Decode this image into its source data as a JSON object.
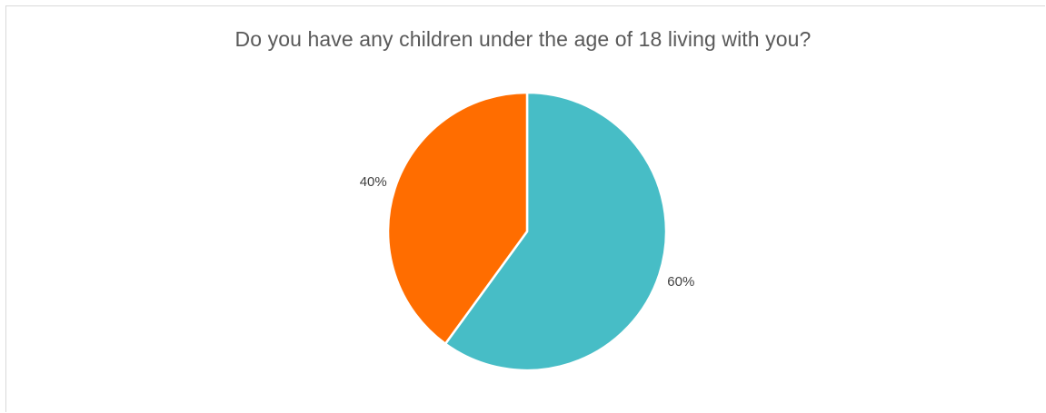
{
  "chart_data": {
    "type": "pie",
    "title": "Do you have any children under the age of 18 living with you?",
    "slices": [
      {
        "value": 60,
        "label": "60%",
        "color": "#47bdc6"
      },
      {
        "value": 40,
        "label": "40%",
        "color": "#ff6d00"
      }
    ],
    "start_angle_deg": 0,
    "direction": "clockwise",
    "legend": "none"
  }
}
